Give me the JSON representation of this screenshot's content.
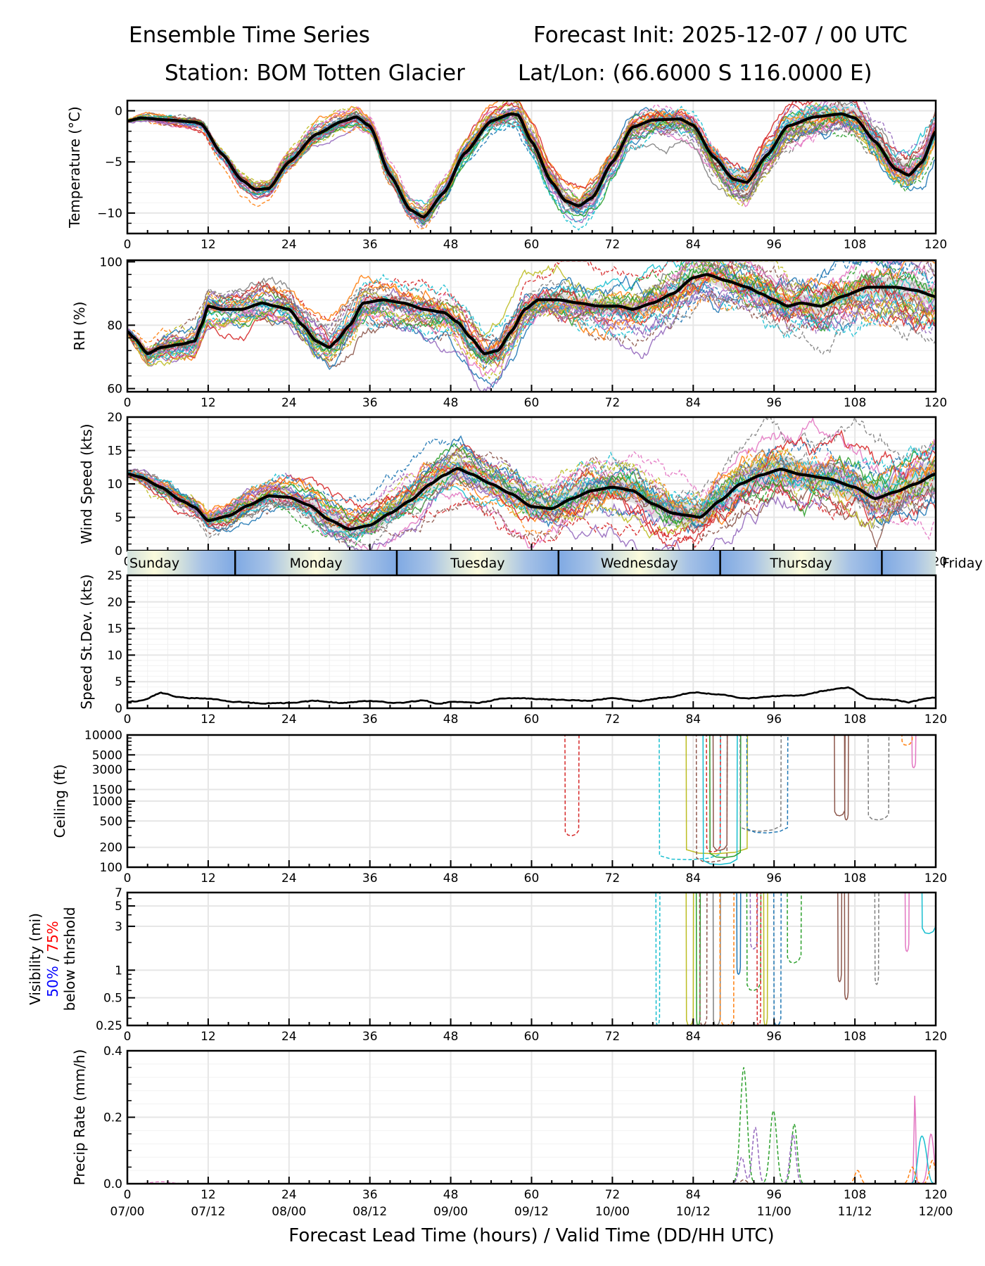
{
  "header": {
    "title_left": "Ensemble Time Series",
    "title_right": "Forecast Init: 2025-12-07 / 00 UTC",
    "station": "Station: BOM Totten Glacier",
    "latlon": "Lat/Lon: (66.6000 S 116.0000 E)"
  },
  "chart_data": [
    {
      "id": "temperature",
      "type": "line",
      "ylabel": "Temperature (°C)",
      "ylim": [
        -12,
        1
      ],
      "yticks": [
        0,
        -5,
        -10
      ],
      "ytick_labels": [
        "0",
        "−5",
        "−10"
      ],
      "xlim": [
        0,
        120
      ],
      "grid": true,
      "mean_series": {
        "name": "ensemble mean",
        "x": [
          0,
          2,
          6,
          10,
          11,
          14,
          17,
          19,
          21,
          24,
          28,
          32,
          34,
          36,
          39,
          42,
          44,
          47,
          50,
          54,
          57,
          58,
          60,
          63,
          65,
          67,
          69,
          72,
          75,
          78,
          82,
          84,
          87,
          90,
          92,
          95,
          98,
          102,
          106,
          108,
          111,
          114,
          116,
          118,
          120
        ],
        "y": [
          -1.0,
          -0.7,
          -0.9,
          -1.1,
          -1.3,
          -4.2,
          -6.8,
          -7.7,
          -7.6,
          -5.0,
          -2.3,
          -1.0,
          -0.6,
          -1.5,
          -6.3,
          -9.7,
          -10.4,
          -8.0,
          -4.2,
          -1.0,
          -0.3,
          -0.4,
          -3.0,
          -7.0,
          -8.8,
          -9.3,
          -8.5,
          -5.0,
          -1.6,
          -0.9,
          -0.8,
          -1.4,
          -4.5,
          -6.7,
          -7.0,
          -4.3,
          -1.5,
          -0.6,
          -0.3,
          -0.7,
          -3.0,
          -5.7,
          -6.3,
          -5.0,
          -2.0
        ]
      },
      "spread_note": "~30 ensemble members (solid and dashed colored lines) with grey ±1σ band"
    },
    {
      "id": "rh",
      "type": "line",
      "ylabel": "RH (%)",
      "ylim": [
        59,
        100.5
      ],
      "yticks": [
        100,
        80,
        60
      ],
      "ytick_labels": [
        "100",
        "80",
        "60"
      ],
      "xlim": [
        0,
        120
      ],
      "grid": true,
      "mean_series": {
        "name": "ensemble mean",
        "x": [
          0,
          1,
          3,
          5,
          8,
          10,
          11,
          12,
          14,
          17,
          20,
          22,
          24,
          26,
          28,
          30,
          31,
          33,
          35,
          38,
          41,
          44,
          47,
          49,
          51,
          53,
          55,
          57,
          59,
          61,
          64,
          67,
          70,
          73,
          75,
          78,
          81,
          84,
          86,
          89,
          92,
          94,
          96,
          98,
          100,
          103,
          106,
          110,
          114,
          117,
          120
        ],
        "y": [
          78,
          76,
          71,
          73,
          74,
          75,
          80,
          86,
          85,
          85,
          87,
          86,
          85,
          80,
          75,
          73,
          75,
          80,
          87,
          88,
          87,
          85,
          84,
          81,
          76,
          71,
          72,
          78,
          85,
          88,
          88,
          87,
          86,
          86,
          85,
          87,
          90,
          95,
          96,
          94,
          92,
          90,
          88,
          86,
          87,
          86,
          89,
          92,
          92,
          91,
          89
        ]
      },
      "spread_note": "~30 ensemble members with grey ±1σ band"
    },
    {
      "id": "wind_speed",
      "type": "line",
      "ylabel": "Wind Speed (kts)",
      "ylim": [
        0,
        20
      ],
      "yticks": [
        0,
        5,
        10,
        15,
        20
      ],
      "ytick_labels": [
        "0",
        "5",
        "10",
        "15",
        "20"
      ],
      "xlim": [
        0,
        120
      ],
      "grid": true,
      "mean_series": {
        "name": "ensemble mean",
        "x": [
          0,
          2,
          5,
          8,
          10,
          12,
          15,
          18,
          21,
          24,
          27,
          30,
          33,
          36,
          39,
          42,
          45,
          47,
          49,
          51,
          54,
          57,
          60,
          63,
          66,
          69,
          72,
          75,
          78,
          81,
          83,
          85,
          88,
          91,
          94,
          97,
          100,
          104,
          108,
          111,
          114,
          117,
          120
        ],
        "y": [
          11.5,
          11,
          9.5,
          7.5,
          6.5,
          4.5,
          5.2,
          6.8,
          8.2,
          8.0,
          6.8,
          4.6,
          3.2,
          3.8,
          5.6,
          7.5,
          10,
          11.3,
          12.3,
          11.5,
          10,
          8.5,
          6.6,
          6.3,
          7.8,
          9.0,
          9.5,
          9.0,
          7.0,
          5.6,
          5.3,
          5.0,
          7.5,
          10,
          11.3,
          12.2,
          11.4,
          10.8,
          9.5,
          7.8,
          8.8,
          10.0,
          11.5
        ]
      },
      "spread_note": "~30 ensemble members with grey ±1σ band"
    },
    {
      "id": "day_band",
      "type": "table",
      "days": [
        "Sunday",
        "Monday",
        "Tuesday",
        "Wednesday",
        "Thursday",
        "Friday"
      ],
      "day_boundaries_hours": [
        16,
        40,
        64,
        88,
        112
      ]
    },
    {
      "id": "speed_stdev",
      "type": "line",
      "ylabel": "Speed St.Dev. (kts)",
      "ylim": [
        0,
        25
      ],
      "yticks": [
        0,
        5,
        10,
        15,
        20,
        25
      ],
      "ytick_labels": [
        "0",
        "5",
        "10",
        "15",
        "20",
        "25"
      ],
      "xlim": [
        0,
        120
      ],
      "grid": true,
      "series": [
        {
          "name": "wind speed standard deviation",
          "x": [
            0,
            2,
            5,
            8,
            12,
            16,
            20,
            24,
            28,
            32,
            36,
            40,
            44,
            46,
            48,
            52,
            56,
            60,
            64,
            68,
            72,
            76,
            80,
            84,
            88,
            92,
            96,
            100,
            104,
            106,
            107,
            110,
            114,
            116,
            118,
            120
          ],
          "y": [
            1.2,
            1.4,
            2.9,
            2.0,
            1.8,
            1.2,
            0.9,
            1.0,
            1.4,
            1.0,
            1.4,
            1.0,
            1.5,
            0.8,
            1.2,
            1.0,
            1.9,
            1.8,
            1.6,
            1.4,
            1.9,
            1.4,
            2.0,
            3.0,
            2.6,
            1.8,
            2.3,
            2.4,
            3.4,
            3.8,
            3.9,
            1.8,
            1.6,
            1.1,
            1.7,
            2.0
          ]
        }
      ]
    },
    {
      "id": "ceiling",
      "type": "line",
      "ylabel": "Ceiling (ft)",
      "yscale": "log",
      "ylim": [
        100,
        10000
      ],
      "yticks": [
        100,
        200,
        500,
        1000,
        1500,
        3000,
        5000,
        10000
      ],
      "ytick_labels": [
        "100",
        "200",
        "500",
        "1000",
        "1500",
        "3000",
        "5000",
        "10000"
      ],
      "xlim": [
        0,
        120
      ],
      "grid": true,
      "note": "Individual member ceiling drops; no ceiling (≥10000 ft) before hour 65",
      "events": [
        {
          "start": 65,
          "end": 67,
          "min": 300,
          "color": "#d62728",
          "dash": true
        },
        {
          "start": 79,
          "end": 88,
          "min": 130,
          "color": "#17becf",
          "dash": true
        },
        {
          "start": 83,
          "end": 92,
          "min": 160,
          "color": "#bcbd22",
          "dash": false
        },
        {
          "start": 84.5,
          "end": 89,
          "min": 120,
          "color": "#8c564b",
          "dash": true
        },
        {
          "start": 85.5,
          "end": 90.5,
          "min": 110,
          "color": "#17becf",
          "dash": false
        },
        {
          "start": 86.5,
          "end": 91,
          "min": 140,
          "color": "#2ca02c",
          "dash": false
        },
        {
          "start": 86,
          "end": 88,
          "min": 170,
          "color": "#d62728",
          "dash": true
        },
        {
          "start": 87,
          "end": 89,
          "min": 180,
          "color": "#8c564b",
          "dash": false
        },
        {
          "start": 91,
          "end": 97,
          "min": 350,
          "color": "#7f7f7f",
          "dash": true
        },
        {
          "start": 92,
          "end": 98,
          "min": 330,
          "color": "#1f77b4",
          "dash": true
        },
        {
          "start": 105,
          "end": 106.5,
          "min": 600,
          "color": "#8c564b",
          "dash": false
        },
        {
          "start": 106.5,
          "end": 107,
          "min": 520,
          "color": "#8c564b",
          "dash": false
        },
        {
          "start": 110,
          "end": 113,
          "min": 520,
          "color": "#7f7f7f",
          "dash": true
        },
        {
          "start": 116.5,
          "end": 117,
          "min": 3200,
          "color": "#e377c2",
          "dash": false
        },
        {
          "start": 115,
          "end": 116.5,
          "min": 7000,
          "color": "#ff7f0e",
          "dash": true
        }
      ]
    },
    {
      "id": "visibility",
      "type": "line",
      "ylabel": "Visibility (mi)",
      "ylabel_line2_part1": "50%",
      "ylabel_line2_sep": " / ",
      "ylabel_line2_part2": "75%",
      "ylabel_line3": "below thrshold",
      "ylabel_colors": {
        "p50": "#0000ff",
        "p75": "#ff0000"
      },
      "yscale": "log",
      "ylim": [
        0.25,
        7
      ],
      "yticks": [
        0.25,
        0.5,
        1,
        3,
        5,
        7
      ],
      "ytick_labels": [
        "0.25",
        "0.5",
        "1",
        "3",
        "5",
        "7"
      ],
      "xlim": [
        0,
        120
      ],
      "grid": true,
      "note": "Member visibility drops begin ~hour 79; no reductions before",
      "events": [
        {
          "start": 78.5,
          "end": 79,
          "min": 0.25,
          "color": "#17becf",
          "dash": true
        },
        {
          "start": 83,
          "end": 84,
          "min": 0.25,
          "color": "#bcbd22",
          "dash": false
        },
        {
          "start": 84.5,
          "end": 85,
          "min": 0.25,
          "color": "#2ca02c",
          "dash": false
        },
        {
          "start": 85,
          "end": 86,
          "min": 0.25,
          "color": "#8c564b",
          "dash": true
        },
        {
          "start": 87,
          "end": 88,
          "min": 0.25,
          "color": "#7f7f7f",
          "dash": false
        },
        {
          "start": 88,
          "end": 90,
          "min": 0.25,
          "color": "#ff7f0e",
          "dash": true
        },
        {
          "start": 90.5,
          "end": 91,
          "min": 0.9,
          "color": "#1f77b4",
          "dash": false
        },
        {
          "start": 92,
          "end": 94,
          "min": 0.6,
          "color": "#2ca02c",
          "dash": true
        },
        {
          "start": 92.5,
          "end": 93.5,
          "min": 1.7,
          "color": "#9467bd",
          "dash": true
        },
        {
          "start": 93.5,
          "end": 94,
          "min": 0.25,
          "color": "#d62728",
          "dash": true
        },
        {
          "start": 94.5,
          "end": 95,
          "min": 0.25,
          "color": "#bcbd22",
          "dash": false
        },
        {
          "start": 96,
          "end": 97,
          "min": 0.25,
          "color": "#1f77b4",
          "dash": true
        },
        {
          "start": 98,
          "end": 100,
          "min": 1.2,
          "color": "#2ca02c",
          "dash": true
        },
        {
          "start": 105.5,
          "end": 106,
          "min": 0.75,
          "color": "#8c564b",
          "dash": false
        },
        {
          "start": 106.5,
          "end": 107,
          "min": 0.48,
          "color": "#8c564b",
          "dash": false
        },
        {
          "start": 111,
          "end": 111.5,
          "min": 0.7,
          "color": "#7f7f7f",
          "dash": true
        },
        {
          "start": 115.5,
          "end": 116,
          "min": 1.6,
          "color": "#e377c2",
          "dash": false
        },
        {
          "start": 118,
          "end": 120,
          "min": 2.5,
          "color": "#17becf",
          "dash": false
        }
      ]
    },
    {
      "id": "precip_rate",
      "type": "line",
      "ylabel": "Precip Rate (mm/h)",
      "ylim": [
        0,
        0.4
      ],
      "yticks": [
        0.0,
        0.2,
        0.4
      ],
      "ytick_labels": [
        "0.0",
        "0.2",
        "0.4"
      ],
      "xlim": [
        0,
        120
      ],
      "grid": true,
      "peaks": [
        {
          "x": 91.5,
          "y": 0.35,
          "color": "#2ca02c",
          "dash": true
        },
        {
          "x": 95.9,
          "y": 0.22,
          "color": "#2ca02c",
          "dash": true
        },
        {
          "x": 99.0,
          "y": 0.18,
          "color": "#2ca02c",
          "dash": true
        },
        {
          "x": 91.2,
          "y": 0.08,
          "color": "#9467bd",
          "dash": true
        },
        {
          "x": 93.2,
          "y": 0.17,
          "color": "#9467bd",
          "dash": true
        },
        {
          "x": 98.8,
          "y": 0.15,
          "color": "#9467bd",
          "dash": true
        },
        {
          "x": 116.9,
          "y": 0.27,
          "color": "#e377c2",
          "dash": false
        },
        {
          "x": 119.3,
          "y": 0.15,
          "color": "#e377c2",
          "dash": false
        },
        {
          "x": 117.7,
          "y": 0.11,
          "color": "#17becf",
          "dash": false
        },
        {
          "x": 118.4,
          "y": 0.09,
          "color": "#17becf",
          "dash": false
        },
        {
          "x": 108.4,
          "y": 0.04,
          "color": "#ff7f0e",
          "dash": true
        },
        {
          "x": 116.5,
          "y": 0.05,
          "color": "#ff7f0e",
          "dash": true
        },
        {
          "x": 119.5,
          "y": 0.07,
          "color": "#ff7f0e",
          "dash": true
        },
        {
          "x": 91.5,
          "y": 0.012,
          "color": "#8c564b",
          "dash": true
        }
      ]
    }
  ],
  "x_axis": {
    "ticks": [
      0,
      12,
      24,
      36,
      48,
      60,
      72,
      84,
      96,
      108,
      120
    ],
    "tick_labels": [
      "0",
      "12",
      "24",
      "36",
      "48",
      "60",
      "72",
      "84",
      "96",
      "108",
      "120"
    ],
    "valid_time_labels": [
      "07/00",
      "07/12",
      "08/00",
      "08/12",
      "09/00",
      "09/12",
      "10/00",
      "10/12",
      "11/00",
      "11/12",
      "12/00"
    ],
    "xlabel": "Forecast Lead Time (hours) / Valid Time (DD/HH UTC)"
  },
  "colors": {
    "members": [
      "#1f77b4",
      "#ff7f0e",
      "#2ca02c",
      "#d62728",
      "#9467bd",
      "#8c564b",
      "#e377c2",
      "#7f7f7f",
      "#bcbd22",
      "#17becf"
    ],
    "mean": "#000000",
    "spread": "#d3d3d3",
    "grid": "#e6e6e6",
    "day_band_night": "#7fa9e3",
    "day_band_day": "#fbfbdc"
  }
}
